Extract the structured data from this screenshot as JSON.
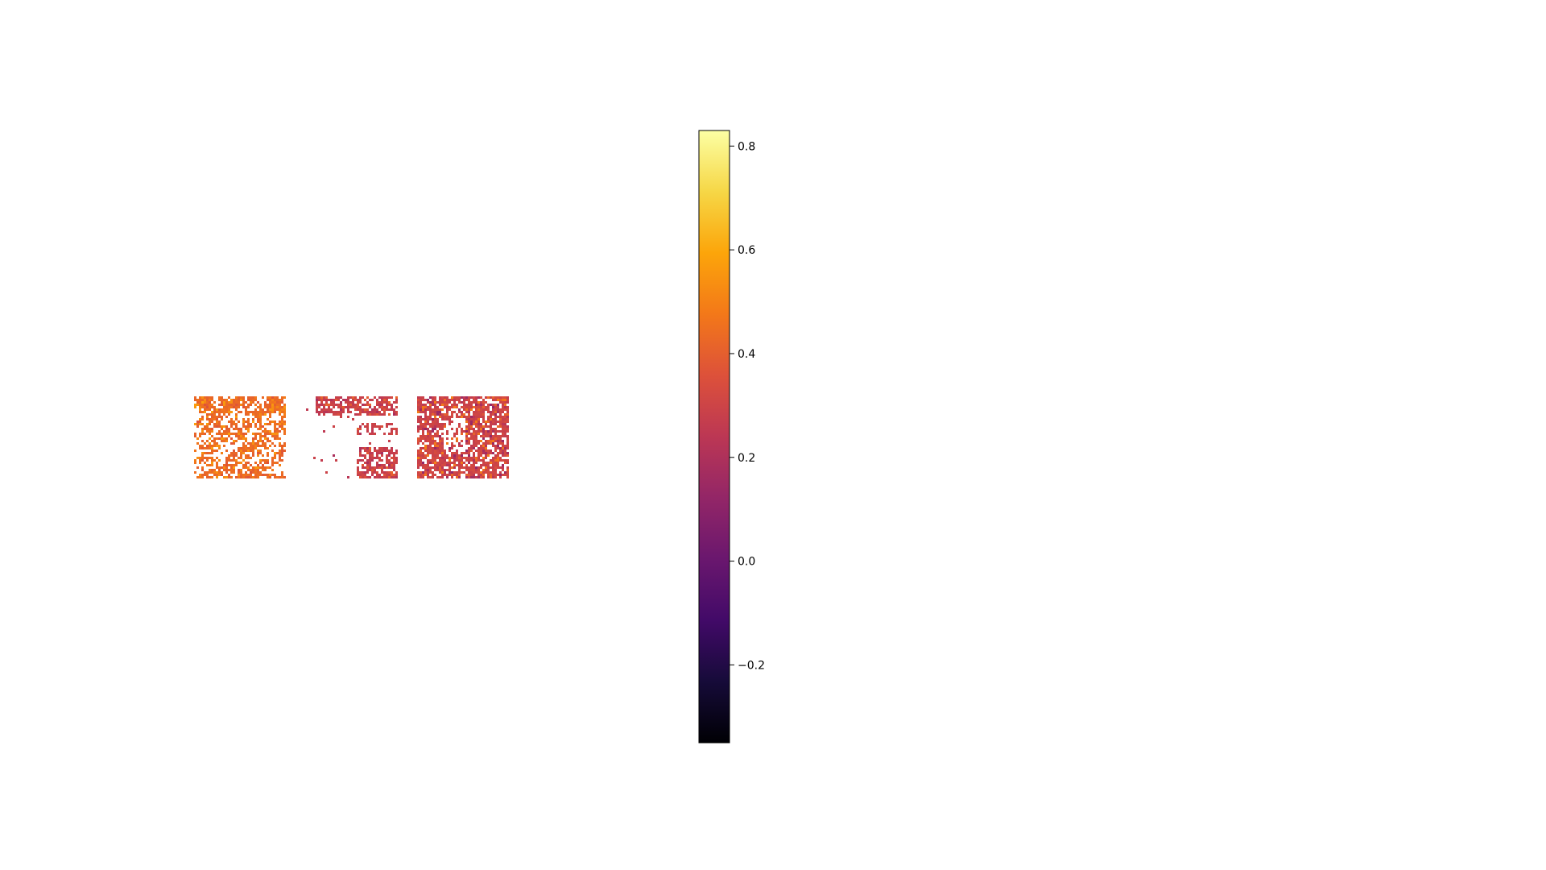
{
  "chart_data": {
    "type": "heatmap",
    "colormap": "inferno",
    "panels": [
      {
        "id": "panel-1",
        "dominant_value": 0.43,
        "value_range": [
          0.36,
          0.58
        ],
        "coverage": 0.55,
        "pattern": "streaks"
      },
      {
        "id": "panel-2",
        "dominant_value": 0.28,
        "value_range": [
          0.18,
          0.42
        ],
        "coverage": 0.25,
        "pattern": "sparse"
      },
      {
        "id": "panel-3",
        "dominant_value": 0.3,
        "value_range": [
          0.12,
          0.5
        ],
        "coverage": 0.78,
        "pattern": "dense"
      }
    ],
    "colorbar": {
      "vmin": -0.35,
      "vmax": 0.83,
      "ticks": [
        -0.2,
        0.0,
        0.2,
        0.4,
        0.6,
        0.8
      ],
      "tick_labels": [
        "−0.2",
        "0.0",
        "0.2",
        "0.4",
        "0.6",
        "0.8"
      ]
    }
  }
}
